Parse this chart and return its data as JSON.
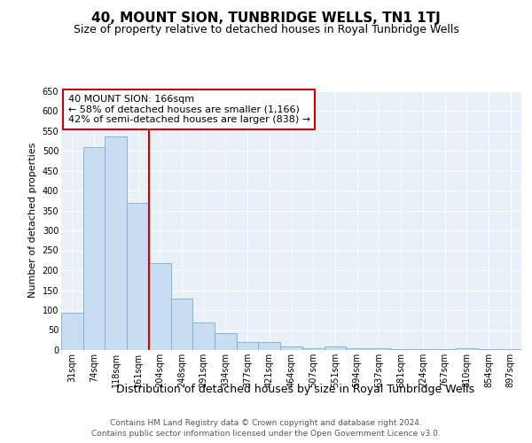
{
  "title": "40, MOUNT SION, TUNBRIDGE WELLS, TN1 1TJ",
  "subtitle": "Size of property relative to detached houses in Royal Tunbridge Wells",
  "xlabel": "Distribution of detached houses by size in Royal Tunbridge Wells",
  "ylabel": "Number of detached properties",
  "footer_line1": "Contains HM Land Registry data © Crown copyright and database right 2024.",
  "footer_line2": "Contains public sector information licensed under the Open Government Licence v3.0.",
  "categories": [
    "31sqm",
    "74sqm",
    "118sqm",
    "161sqm",
    "204sqm",
    "248sqm",
    "291sqm",
    "334sqm",
    "377sqm",
    "421sqm",
    "464sqm",
    "507sqm",
    "551sqm",
    "594sqm",
    "637sqm",
    "681sqm",
    "724sqm",
    "767sqm",
    "810sqm",
    "854sqm",
    "897sqm"
  ],
  "values": [
    93,
    510,
    535,
    370,
    218,
    128,
    70,
    43,
    20,
    20,
    10,
    5,
    10,
    5,
    5,
    2,
    2,
    2,
    5,
    2,
    2
  ],
  "bar_color": "#c9ddf0",
  "bar_edge_color": "#7bafd4",
  "vline_pos": 3.5,
  "annotation_text_line1": "40 MOUNT SION: 166sqm",
  "annotation_text_line2": "← 58% of detached houses are smaller (1,166)",
  "annotation_text_line3": "42% of semi-detached houses are larger (838) →",
  "annotation_box_facecolor": "#ffffff",
  "annotation_box_edgecolor": "#cc0000",
  "vline_color": "#cc0000",
  "ylim_max": 650,
  "yticks": [
    0,
    50,
    100,
    150,
    200,
    250,
    300,
    350,
    400,
    450,
    500,
    550,
    600,
    650
  ],
  "fig_facecolor": "#ffffff",
  "plot_facecolor": "#e8f1f8",
  "grid_color": "#ffffff",
  "title_fontsize": 11,
  "subtitle_fontsize": 9,
  "annot_fontsize": 8,
  "tick_fontsize": 7,
  "ylabel_fontsize": 8,
  "xlabel_fontsize": 9,
  "footer_fontsize": 6.5
}
